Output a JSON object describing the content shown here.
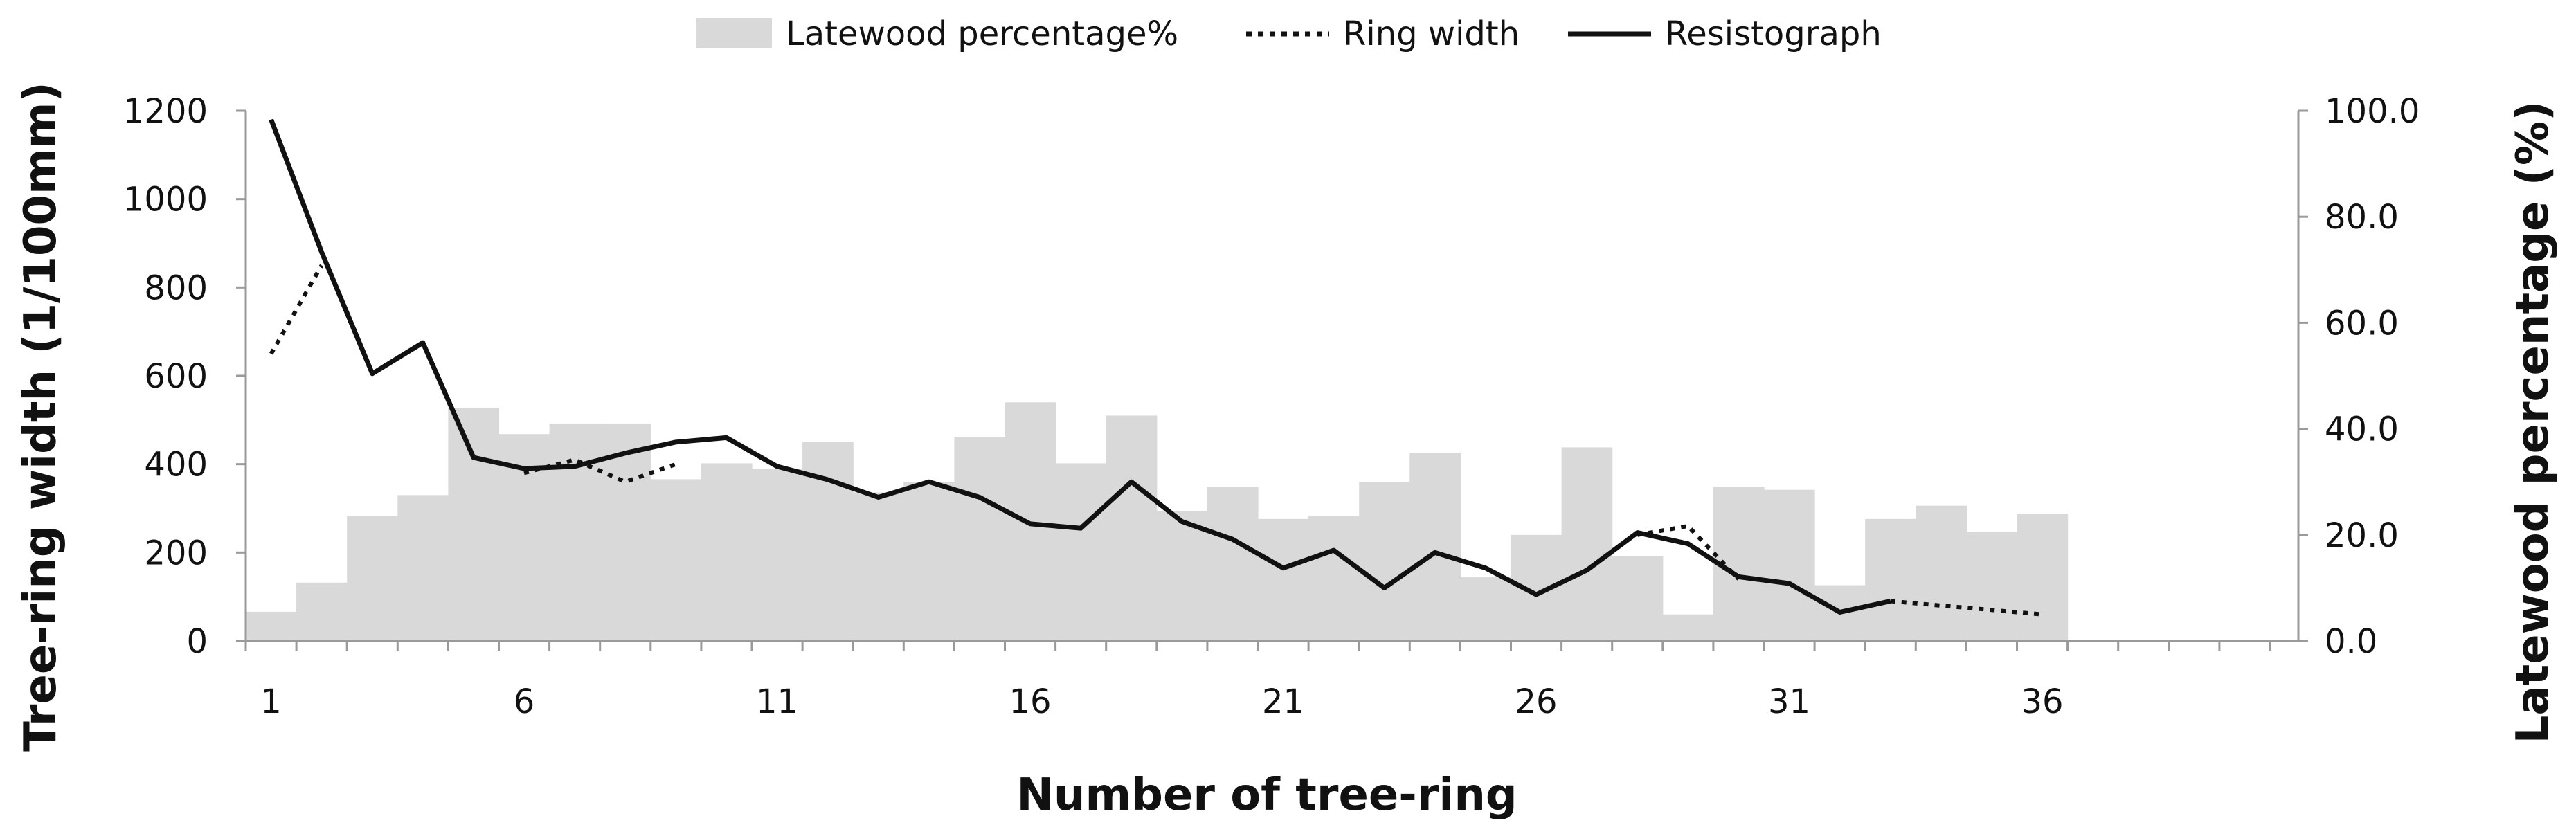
{
  "chart_data": {
    "type": "bar",
    "x": [
      1,
      2,
      3,
      4,
      5,
      6,
      7,
      8,
      9,
      10,
      11,
      12,
      13,
      14,
      15,
      16,
      17,
      18,
      19,
      20,
      21,
      22,
      23,
      24,
      25,
      26,
      27,
      28,
      29,
      30,
      31,
      32,
      33,
      34,
      35,
      36
    ],
    "xticks": [
      1,
      6,
      11,
      16,
      21,
      26,
      31,
      36
    ],
    "xlabel": "Number of tree-ring",
    "ylabel": "Tree-ring width (1/100mm)",
    "y2label": "Latewood percentage (%)",
    "ylim": [
      0,
      1200
    ],
    "yticks": [
      0,
      200,
      400,
      600,
      800,
      1000,
      1200
    ],
    "y2lim": [
      0,
      100
    ],
    "y2ticks": [
      "0.0",
      "20.0",
      "40.0",
      "60.0",
      "80.0",
      "100.0"
    ],
    "legend_position": "top-center",
    "grid": false,
    "series": [
      {
        "name": "Latewood percentage%",
        "type": "bar",
        "axis": "right",
        "color": "#d9d9d9",
        "values": [
          5.5,
          11,
          23.5,
          27.5,
          44,
          39,
          41,
          41,
          30.5,
          33.5,
          32.5,
          37.5,
          28,
          30,
          38.5,
          45,
          33.5,
          42.5,
          24.5,
          29,
          23,
          23.5,
          30,
          35.5,
          12,
          20,
          36.5,
          16,
          5,
          29,
          28.5,
          10.5,
          23,
          25.5,
          20.5,
          24
        ]
      },
      {
        "name": "Ring width",
        "type": "line",
        "style": "dotted",
        "axis": "left",
        "color": "#111111",
        "values": [
          650,
          850,
          null,
          null,
          null,
          380,
          410,
          360,
          400,
          null,
          null,
          null,
          null,
          null,
          null,
          null,
          null,
          null,
          null,
          null,
          null,
          null,
          null,
          null,
          null,
          null,
          null,
          240,
          260,
          140,
          null,
          null,
          90,
          80,
          70,
          60
        ]
      },
      {
        "name": "Resistograph",
        "type": "line",
        "style": "solid",
        "axis": "left",
        "color": "#111111",
        "values": [
          1180,
          880,
          605,
          675,
          415,
          390,
          395,
          425,
          450,
          460,
          395,
          365,
          325,
          360,
          325,
          265,
          255,
          360,
          270,
          230,
          165,
          205,
          120,
          200,
          165,
          105,
          160,
          245,
          220,
          145,
          130,
          65,
          90,
          null,
          null,
          null
        ]
      }
    ]
  }
}
